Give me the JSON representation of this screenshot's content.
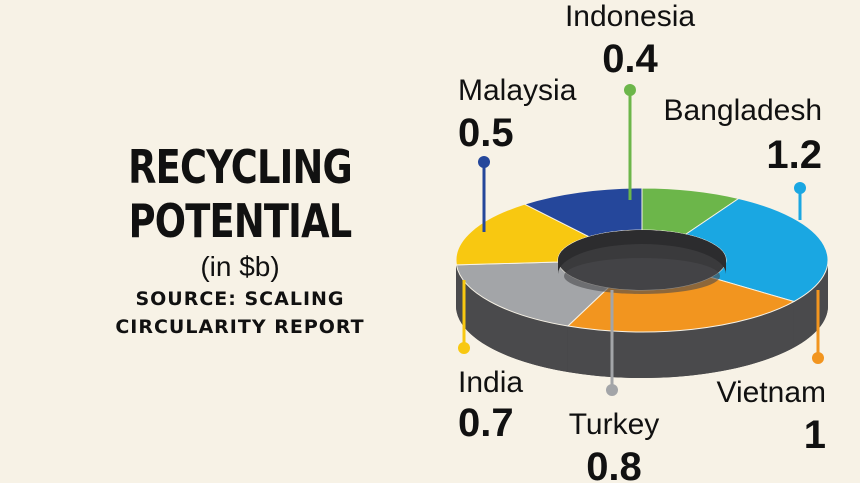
{
  "title_line1": "RECYCLING",
  "title_line2": "POTENTIAL",
  "unit": "(in $b)",
  "source_line1": "SOURCE: SCALING",
  "source_line2": "CIRCULARITY REPORT",
  "chart_data": {
    "type": "pie",
    "style": "3d-donut",
    "title": "RECYCLING POTENTIAL",
    "unit": "(in $b)",
    "source": "SOURCE: SCALING CIRCULARITY REPORT",
    "slices": [
      {
        "label": "Indonesia",
        "value": 0.4,
        "value_text": "0.4",
        "color": "#6cb64a",
        "side": "#4a8a30"
      },
      {
        "label": "Bangladesh",
        "value": 1.2,
        "value_text": "1.2",
        "color": "#1aa7e2",
        "side": "#0f7fb0"
      },
      {
        "label": "Vietnam",
        "value": 1.0,
        "value_text": "1",
        "color": "#f2951f",
        "side": "#c06f10"
      },
      {
        "label": "Turkey",
        "value": 0.8,
        "value_text": "0.8",
        "color": "#a3a5a8",
        "side": "#777a7d"
      },
      {
        "label": "India",
        "value": 0.7,
        "value_text": "0.7",
        "color": "#f8c811",
        "side": "#c89c05"
      },
      {
        "label": "Malaysia",
        "value": 0.5,
        "value_text": "0.5",
        "color": "#25479b",
        "side": "#18326e"
      }
    ],
    "legend": "none"
  }
}
